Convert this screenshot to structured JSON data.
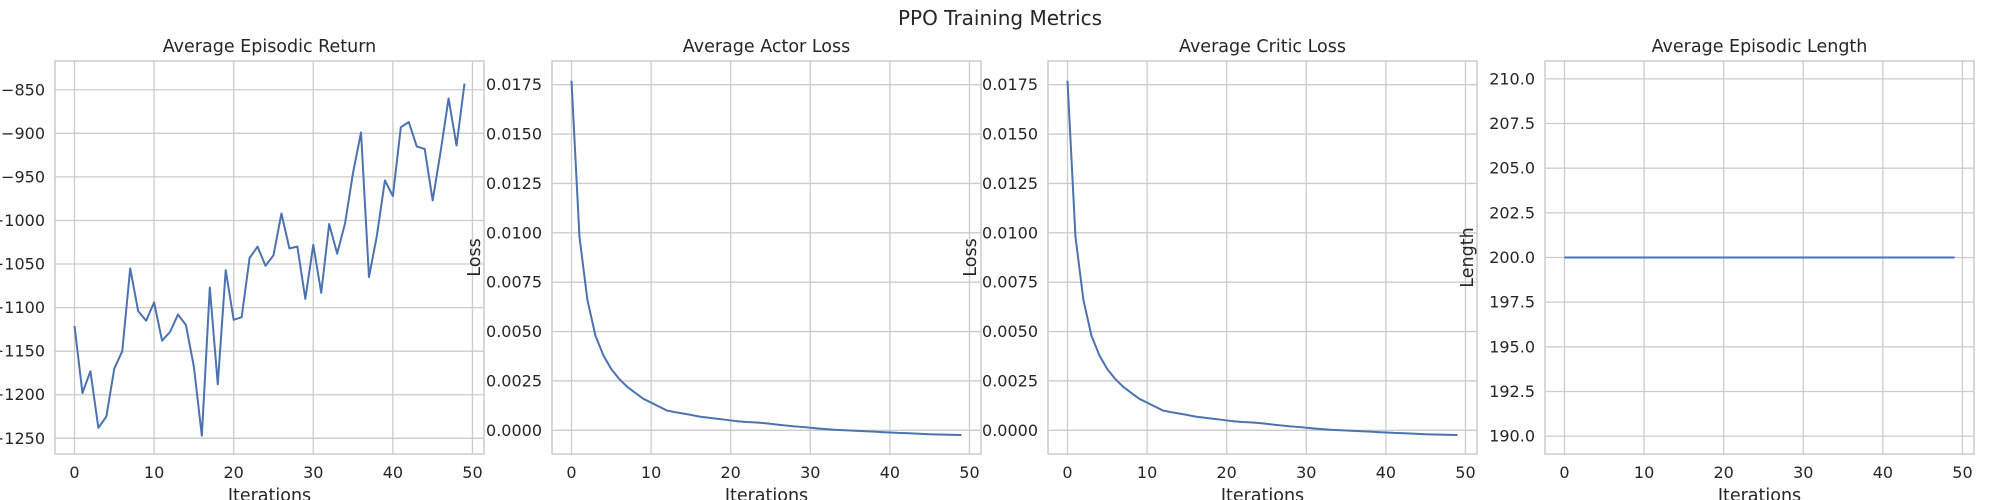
{
  "figure": {
    "title": "PPO Training Metrics"
  },
  "chart_data": [
    {
      "type": "line",
      "title": "Average Episodic Return",
      "xlabel": "Iterations",
      "ylabel": "",
      "xlim": [
        -2.45,
        51.45
      ],
      "ylim": [
        -1268,
        -817
      ],
      "xticks": [
        0,
        10,
        20,
        30,
        40,
        50
      ],
      "yticks": [
        -1250,
        -1200,
        -1150,
        -1100,
        -1050,
        -1000,
        -950,
        -900,
        -850
      ],
      "grid": true,
      "color": "#4c72b0",
      "x": [
        0,
        1,
        2,
        3,
        4,
        5,
        6,
        7,
        8,
        9,
        10,
        11,
        12,
        13,
        14,
        15,
        16,
        17,
        18,
        19,
        20,
        21,
        22,
        23,
        24,
        25,
        26,
        27,
        28,
        29,
        30,
        31,
        32,
        33,
        34,
        35,
        36,
        37,
        38,
        39,
        40,
        41,
        42,
        43,
        44,
        45,
        46,
        47,
        48,
        49
      ],
      "y": [
        -1121,
        -1198,
        -1173,
        -1238,
        -1225,
        -1170,
        -1150,
        -1055,
        -1104,
        -1115,
        -1094,
        -1138,
        -1128,
        -1108,
        -1120,
        -1168,
        -1247,
        -1077,
        -1188,
        -1057,
        -1114,
        -1111,
        -1043,
        -1030,
        -1052,
        -1040,
        -992,
        -1032,
        -1030,
        -1090,
        -1028,
        -1083,
        -1004,
        -1038,
        -1003,
        -945,
        -899,
        -1065,
        -1017,
        -954,
        -972,
        -893,
        -887,
        -915,
        -918,
        -977,
        -921,
        -860,
        -914,
        -843
      ]
    },
    {
      "type": "line",
      "title": "Average Actor Loss",
      "xlabel": "Iterations",
      "ylabel": "Loss",
      "xlim": [
        -2.45,
        51.45
      ],
      "ylim": [
        -0.0012,
        0.0187
      ],
      "xticks": [
        0,
        10,
        20,
        30,
        40,
        50
      ],
      "yticks": [
        0.0,
        0.0025,
        0.005,
        0.0075,
        0.01,
        0.0125,
        0.015,
        0.0175
      ],
      "ytick_labels": [
        "0.0000",
        "0.0025",
        "0.0050",
        "0.0075",
        "0.0100",
        "0.0125",
        "0.0150",
        "0.0175"
      ],
      "grid": true,
      "color": "#4c72b0",
      "x": [
        0,
        1,
        2,
        3,
        4,
        5,
        6,
        7,
        8,
        9,
        10,
        11,
        12,
        13,
        14,
        15,
        16,
        17,
        18,
        19,
        20,
        21,
        22,
        23,
        24,
        25,
        26,
        27,
        28,
        29,
        30,
        31,
        32,
        33,
        34,
        35,
        36,
        37,
        38,
        39,
        40,
        41,
        42,
        43,
        44,
        45,
        46,
        47,
        48,
        49
      ],
      "y": [
        0.0177,
        0.0098,
        0.0066,
        0.0048,
        0.0038,
        0.0031,
        0.0026,
        0.0022,
        0.0019,
        0.0016,
        0.0014,
        0.0012,
        0.001,
        0.00092,
        0.00085,
        0.00078,
        0.0007,
        0.00065,
        0.0006,
        0.00055,
        0.0005,
        0.00045,
        0.00042,
        0.0004,
        0.00037,
        0.00033,
        0.00028,
        0.00024,
        0.0002,
        0.00017,
        0.00013,
        9e-05,
        6e-05,
        3e-05,
        1e-05,
        -1e-05,
        -3e-05,
        -5e-05,
        -7e-05,
        -9e-05,
        -0.00011,
        -0.00013,
        -0.00014,
        -0.00016,
        -0.00018,
        -0.0002,
        -0.00021,
        -0.00022,
        -0.00023,
        -0.00024
      ]
    },
    {
      "type": "line",
      "title": "Average Critic Loss",
      "xlabel": "Iterations",
      "ylabel": "Loss",
      "xlim": [
        -2.45,
        51.45
      ],
      "ylim": [
        -0.0012,
        0.0187
      ],
      "xticks": [
        0,
        10,
        20,
        30,
        40,
        50
      ],
      "yticks": [
        0.0,
        0.0025,
        0.005,
        0.0075,
        0.01,
        0.0125,
        0.015,
        0.0175
      ],
      "ytick_labels": [
        "0.0000",
        "0.0025",
        "0.0050",
        "0.0075",
        "0.0100",
        "0.0125",
        "0.0150",
        "0.0175"
      ],
      "grid": true,
      "color": "#4c72b0",
      "x": [
        0,
        1,
        2,
        3,
        4,
        5,
        6,
        7,
        8,
        9,
        10,
        11,
        12,
        13,
        14,
        15,
        16,
        17,
        18,
        19,
        20,
        21,
        22,
        23,
        24,
        25,
        26,
        27,
        28,
        29,
        30,
        31,
        32,
        33,
        34,
        35,
        36,
        37,
        38,
        39,
        40,
        41,
        42,
        43,
        44,
        45,
        46,
        47,
        48,
        49
      ],
      "y": [
        0.0177,
        0.0098,
        0.0066,
        0.0048,
        0.0038,
        0.0031,
        0.0026,
        0.0022,
        0.0019,
        0.0016,
        0.0014,
        0.0012,
        0.001,
        0.00092,
        0.00085,
        0.00078,
        0.0007,
        0.00065,
        0.0006,
        0.00055,
        0.0005,
        0.00045,
        0.00042,
        0.0004,
        0.00037,
        0.00033,
        0.00028,
        0.00024,
        0.0002,
        0.00017,
        0.00013,
        9e-05,
        6e-05,
        3e-05,
        1e-05,
        -1e-05,
        -3e-05,
        -5e-05,
        -7e-05,
        -9e-05,
        -0.00011,
        -0.00013,
        -0.00014,
        -0.00016,
        -0.00018,
        -0.0002,
        -0.00021,
        -0.00022,
        -0.00023,
        -0.00024
      ]
    },
    {
      "type": "line",
      "title": "Average Episodic Length",
      "xlabel": "Iterations",
      "ylabel": "Length",
      "xlim": [
        -2.45,
        51.45
      ],
      "ylim": [
        189.0,
        211.0
      ],
      "xticks": [
        0,
        10,
        20,
        30,
        40,
        50
      ],
      "yticks": [
        190.0,
        192.5,
        195.0,
        197.5,
        200.0,
        202.5,
        205.0,
        207.5,
        210.0
      ],
      "ytick_labels": [
        "190.0",
        "192.5",
        "195.0",
        "197.5",
        "200.0",
        "202.5",
        "205.0",
        "207.5",
        "210.0"
      ],
      "grid": true,
      "color": "#4c72b0",
      "x": [
        0,
        1,
        2,
        3,
        4,
        5,
        6,
        7,
        8,
        9,
        10,
        11,
        12,
        13,
        14,
        15,
        16,
        17,
        18,
        19,
        20,
        21,
        22,
        23,
        24,
        25,
        26,
        27,
        28,
        29,
        30,
        31,
        32,
        33,
        34,
        35,
        36,
        37,
        38,
        39,
        40,
        41,
        42,
        43,
        44,
        45,
        46,
        47,
        48,
        49
      ],
      "y": [
        200,
        200,
        200,
        200,
        200,
        200,
        200,
        200,
        200,
        200,
        200,
        200,
        200,
        200,
        200,
        200,
        200,
        200,
        200,
        200,
        200,
        200,
        200,
        200,
        200,
        200,
        200,
        200,
        200,
        200,
        200,
        200,
        200,
        200,
        200,
        200,
        200,
        200,
        200,
        200,
        200,
        200,
        200,
        200,
        200,
        200,
        200,
        200,
        200,
        200
      ]
    }
  ]
}
